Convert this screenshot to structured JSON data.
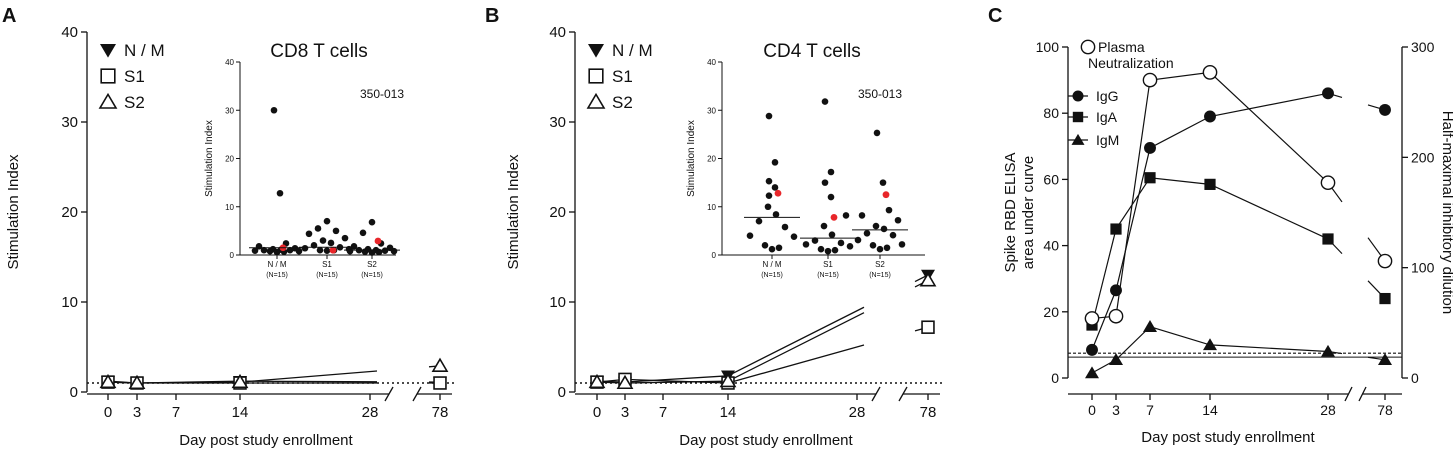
{
  "colors": {
    "ink": "#111111",
    "highlight": "#e8262a"
  },
  "x_axis_title": "Day post study enrollment",
  "chart_data": [
    {
      "panel_label": "A",
      "type": "line",
      "ylabel": "Stimulation Index",
      "xlabel": "Day post study enrollment",
      "ylim": [
        0,
        40
      ],
      "y_ticks": [
        0,
        10,
        20,
        30,
        40
      ],
      "x_ticks": [
        "0",
        "3",
        "7",
        "14",
        "28",
        "78"
      ],
      "x_days": [
        0,
        3,
        7,
        14,
        28,
        78
      ],
      "baseline": 1,
      "legend": [
        "N / M",
        "S1",
        "S2"
      ],
      "series": [
        {
          "name": "N / M",
          "marker": "tri-down",
          "x": [
            0,
            3,
            14,
            78
          ],
          "y": [
            1.2,
            1.0,
            1.2,
            1.1
          ]
        },
        {
          "name": "S1",
          "marker": "square",
          "x": [
            0,
            3,
            14,
            78
          ],
          "y": [
            1.1,
            1.0,
            1.0,
            1.0
          ]
        },
        {
          "name": "S2",
          "marker": "tri-up",
          "x": [
            0,
            3,
            14,
            78
          ],
          "y": [
            1.1,
            1.0,
            1.1,
            2.9
          ]
        }
      ],
      "inset": {
        "title": "CD8 T cells",
        "ylabel": "Stimulation Index",
        "ylim": [
          0,
          40
        ],
        "y_ticks": [
          0,
          10,
          20,
          30,
          40
        ],
        "annotation": "350-013",
        "groups": [
          {
            "label": "N / M",
            "n": "(N=15)",
            "median": 1.5,
            "values": [
              30,
              12.8,
              2.4,
              1.8,
              1.4,
              1.2,
              1.1,
              1.0,
              1.0,
              0.9,
              0.8,
              0.8,
              0.7,
              0.6
            ],
            "highlight": 1.5
          },
          {
            "label": "S1",
            "n": "(N=15)",
            "median": 1.6,
            "values": [
              7.0,
              5.5,
              5.0,
              4.4,
              3.5,
              3.0,
              2.5,
              2.0,
              1.6,
              1.4,
              1.2,
              1.0,
              1.0,
              0.9
            ],
            "highlight": 1.0
          },
          {
            "label": "S2",
            "n": "(N=15)",
            "median": 1.0,
            "values": [
              6.8,
              4.6,
              2.4,
              1.8,
              1.5,
              1.2,
              1.0,
              1.0,
              0.9,
              0.8,
              0.8,
              0.7,
              0.6,
              0.5
            ],
            "highlight": 2.9
          }
        ]
      }
    },
    {
      "panel_label": "B",
      "type": "line",
      "ylabel": "Stimulation Index",
      "xlabel": "Day post study enrollment",
      "ylim": [
        0,
        40
      ],
      "y_ticks": [
        0,
        10,
        20,
        30,
        40
      ],
      "x_ticks": [
        "0",
        "3",
        "7",
        "14",
        "28",
        "78"
      ],
      "x_days": [
        0,
        3,
        7,
        14,
        28,
        78
      ],
      "baseline": 1,
      "legend": [
        "N / M",
        "S1",
        "S2"
      ],
      "series": [
        {
          "name": "N / M",
          "marker": "tri-down",
          "x": [
            0,
            3,
            14,
            78
          ],
          "y": [
            1.2,
            1.1,
            1.8,
            13.0
          ]
        },
        {
          "name": "S1",
          "marker": "square",
          "x": [
            0,
            3,
            14,
            78
          ],
          "y": [
            1.1,
            1.4,
            1.0,
            7.2
          ]
        },
        {
          "name": "S2",
          "marker": "tri-up",
          "x": [
            0,
            3,
            14,
            78
          ],
          "y": [
            1.1,
            1.0,
            1.2,
            12.4
          ]
        }
      ],
      "inset": {
        "title": "CD4 T cells",
        "ylabel": "Stimulation Index",
        "ylim": [
          0,
          40
        ],
        "y_ticks": [
          0,
          10,
          20,
          30,
          40
        ],
        "annotation": "350-013",
        "groups": [
          {
            "label": "N / M",
            "n": "(N=15)",
            "median": 7.8,
            "values": [
              28.8,
              19.2,
              15.3,
              14.0,
              12.3,
              10.0,
              8.4,
              7.0,
              5.8,
              4.0,
              3.8,
              2.0,
              1.5,
              1.2
            ],
            "highlight": 12.8
          },
          {
            "label": "S1",
            "n": "(N=15)",
            "median": 3.5,
            "values": [
              31.8,
              17.2,
              15.0,
              12.0,
              8.2,
              6.0,
              4.2,
              3.0,
              2.5,
              2.2,
              1.8,
              1.2,
              1.0,
              0.8
            ],
            "highlight": 7.8
          },
          {
            "label": "S2",
            "n": "(N=15)",
            "median": 5.2,
            "values": [
              25.3,
              15.0,
              9.3,
              8.2,
              7.2,
              6.0,
              5.4,
              4.5,
              4.1,
              3.1,
              2.2,
              2.0,
              1.5,
              1.2
            ],
            "highlight": 12.5
          }
        ]
      }
    },
    {
      "panel_label": "C",
      "type": "line",
      "ylabel": "Spike RBD ELISA area under curve",
      "ylabel_lines": [
        "Spike RBD ELISA",
        "area under curve"
      ],
      "y2label": "Half-maximal inhibitory dilution",
      "xlabel": "Day post study enrollment",
      "ylim": [
        0,
        100
      ],
      "y_ticks": [
        0,
        20,
        40,
        60,
        80,
        100
      ],
      "y2lim": [
        0,
        300
      ],
      "y2_ticks": [
        0,
        100,
        200,
        300
      ],
      "x_ticks": [
        "0",
        "3",
        "7",
        "14",
        "28",
        "78"
      ],
      "x_days": [
        0,
        3,
        7,
        14,
        28,
        78
      ],
      "legend": [
        "Plasma",
        "Neutralization",
        "IgG",
        "IgA",
        "IgM"
      ],
      "series": [
        {
          "name": "IgG",
          "marker": "circle",
          "axis": "left",
          "x": [
            0,
            3,
            7,
            14,
            28,
            78
          ],
          "y": [
            8.5,
            26.5,
            69.5,
            79.0,
            86.0,
            81.0
          ]
        },
        {
          "name": "IgA",
          "marker": "square",
          "axis": "left",
          "x": [
            0,
            3,
            7,
            14,
            28,
            78
          ],
          "y": [
            16.0,
            45.0,
            60.5,
            58.5,
            42.0,
            24.0
          ]
        },
        {
          "name": "IgM",
          "marker": "tri-up",
          "axis": "left",
          "x": [
            0,
            3,
            7,
            14,
            28,
            78
          ],
          "y": [
            1.5,
            5.5,
            15.5,
            10.0,
            8.0,
            5.5
          ]
        },
        {
          "name": "Plasma Neutralization",
          "marker": "open-circle",
          "axis": "right",
          "x": [
            0,
            3,
            7,
            14,
            28,
            78
          ],
          "y": [
            54,
            56,
            270,
            277,
            177,
            106
          ]
        }
      ]
    }
  ]
}
